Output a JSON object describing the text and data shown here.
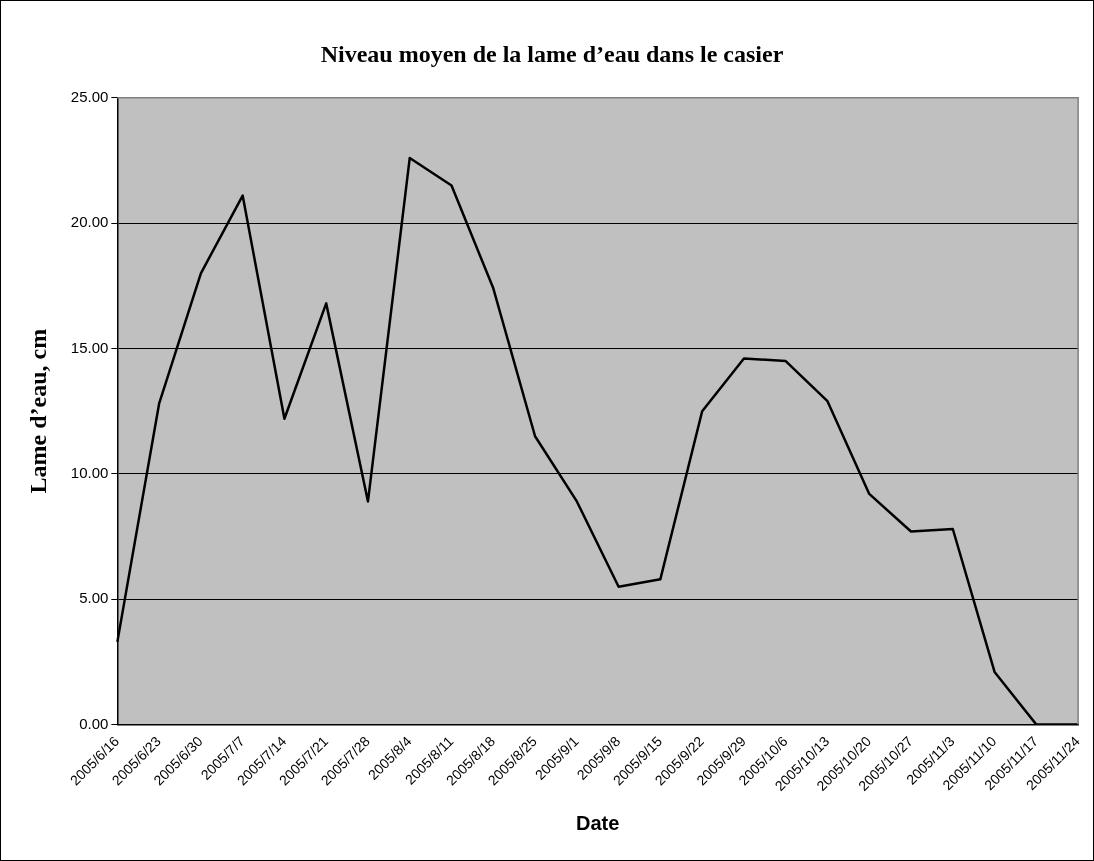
{
  "chart_data": {
    "type": "line",
    "title": "Niveau moyen de la lame d’eau dans le casier",
    "xlabel": "Date",
    "ylabel": "Lame d’eau, cm",
    "categories": [
      "2005/6/16",
      "2005/6/23",
      "2005/6/30",
      "2005/7/7",
      "2005/7/14",
      "2005/7/21",
      "2005/7/28",
      "2005/8/4",
      "2005/8/11",
      "2005/8/18",
      "2005/8/25",
      "2005/9/1",
      "2005/9/8",
      "2005/9/15",
      "2005/9/22",
      "2005/9/29",
      "2005/10/6",
      "2005/10/13",
      "2005/10/20",
      "2005/10/27",
      "2005/11/3",
      "2005/11/10",
      "2005/11/17",
      "2005/11/24"
    ],
    "series": [
      {
        "color": "#000000",
        "values": [
          3.3,
          12.8,
          18.0,
          21.1,
          12.2,
          16.8,
          8.9,
          22.6,
          21.5,
          17.4,
          11.5,
          8.9,
          5.5,
          5.8,
          12.5,
          14.6,
          14.5,
          12.9,
          9.2,
          7.7,
          7.8,
          2.1,
          0,
          0
        ]
      }
    ],
    "ylim": [
      0,
      25
    ],
    "yticks": [
      {
        "value": 0,
        "label": "0.00"
      },
      {
        "value": 5,
        "label": "5.00"
      },
      {
        "value": 10,
        "label": "10.00"
      },
      {
        "value": 15,
        "label": "15.00"
      },
      {
        "value": 20,
        "label": "20.00"
      },
      {
        "value": 25,
        "label": "25.00"
      }
    ],
    "grid": "y",
    "legend": false,
    "marker": "none",
    "line_style": "solid"
  }
}
